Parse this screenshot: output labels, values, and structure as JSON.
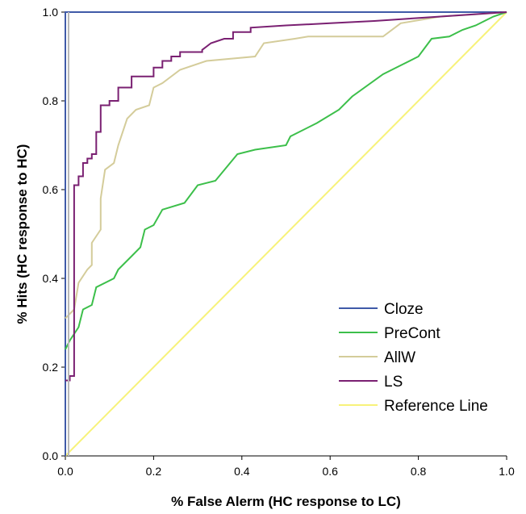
{
  "chart_data": {
    "type": "line",
    "xlabel": "% False Alerm (HC response to LC)",
    "ylabel": "% Hits (HC response to HC)",
    "xlim": [
      0,
      1
    ],
    "ylim": [
      0,
      1
    ],
    "x_ticks": [
      "0.0",
      "0.2",
      "0.4",
      "0.6",
      "0.8",
      "1.0"
    ],
    "y_ticks": [
      "0.0",
      "0.2",
      "0.4",
      "0.6",
      "0.8",
      "1.0"
    ],
    "legend_position": "bottom-right",
    "grid": false,
    "series": [
      {
        "name": "Cloze",
        "color": "#3f5aa8",
        "points": [
          [
            0,
            0
          ],
          [
            0,
            1
          ],
          [
            1,
            1
          ]
        ]
      },
      {
        "name": "PreCont",
        "color": "#3cbf4a",
        "points": [
          [
            0,
            0.24
          ],
          [
            0.01,
            0.26
          ],
          [
            0.03,
            0.29
          ],
          [
            0.04,
            0.33
          ],
          [
            0.06,
            0.34
          ],
          [
            0.07,
            0.38
          ],
          [
            0.11,
            0.4
          ],
          [
            0.12,
            0.42
          ],
          [
            0.15,
            0.45
          ],
          [
            0.17,
            0.47
          ],
          [
            0.18,
            0.51
          ],
          [
            0.2,
            0.52
          ],
          [
            0.22,
            0.555
          ],
          [
            0.27,
            0.57
          ],
          [
            0.3,
            0.61
          ],
          [
            0.34,
            0.62
          ],
          [
            0.39,
            0.68
          ],
          [
            0.43,
            0.69
          ],
          [
            0.5,
            0.7
          ],
          [
            0.51,
            0.72
          ],
          [
            0.57,
            0.75
          ],
          [
            0.62,
            0.78
          ],
          [
            0.65,
            0.81
          ],
          [
            0.72,
            0.86
          ],
          [
            0.76,
            0.88
          ],
          [
            0.8,
            0.9
          ],
          [
            0.83,
            0.94
          ],
          [
            0.87,
            0.945
          ],
          [
            0.9,
            0.96
          ],
          [
            0.93,
            0.97
          ],
          [
            0.95,
            0.98
          ],
          [
            0.97,
            0.99
          ],
          [
            1,
            1
          ]
        ]
      },
      {
        "name": "AllW",
        "color": "#d4cc9a",
        "points": [
          [
            0,
            0.31
          ],
          [
            0.02,
            0.33
          ],
          [
            0.03,
            0.39
          ],
          [
            0.05,
            0.42
          ],
          [
            0.06,
            0.43
          ],
          [
            0.06,
            0.48
          ],
          [
            0.08,
            0.51
          ],
          [
            0.08,
            0.58
          ],
          [
            0.09,
            0.645
          ],
          [
            0.11,
            0.66
          ],
          [
            0.12,
            0.7
          ],
          [
            0.14,
            0.76
          ],
          [
            0.16,
            0.78
          ],
          [
            0.19,
            0.79
          ],
          [
            0.2,
            0.83
          ],
          [
            0.22,
            0.84
          ],
          [
            0.26,
            0.87
          ],
          [
            0.32,
            0.89
          ],
          [
            0.43,
            0.9
          ],
          [
            0.45,
            0.93
          ],
          [
            0.52,
            0.94
          ],
          [
            0.55,
            0.945
          ],
          [
            0.72,
            0.945
          ],
          [
            0.76,
            0.975
          ],
          [
            0.85,
            0.99
          ],
          [
            0.93,
            0.995
          ],
          [
            1,
            1
          ]
        ]
      },
      {
        "name": "LS",
        "color": "#7a2072",
        "points": [
          [
            0,
            0.17
          ],
          [
            0.01,
            0.17
          ],
          [
            0.01,
            0.18
          ],
          [
            0.02,
            0.18
          ],
          [
            0.02,
            0.61
          ],
          [
            0.03,
            0.61
          ],
          [
            0.03,
            0.63
          ],
          [
            0.04,
            0.63
          ],
          [
            0.04,
            0.66
          ],
          [
            0.05,
            0.66
          ],
          [
            0.05,
            0.67
          ],
          [
            0.06,
            0.67
          ],
          [
            0.06,
            0.68
          ],
          [
            0.07,
            0.68
          ],
          [
            0.07,
            0.73
          ],
          [
            0.08,
            0.73
          ],
          [
            0.08,
            0.79
          ],
          [
            0.1,
            0.79
          ],
          [
            0.1,
            0.8
          ],
          [
            0.12,
            0.8
          ],
          [
            0.12,
            0.83
          ],
          [
            0.15,
            0.83
          ],
          [
            0.15,
            0.855
          ],
          [
            0.2,
            0.855
          ],
          [
            0.2,
            0.875
          ],
          [
            0.22,
            0.875
          ],
          [
            0.22,
            0.89
          ],
          [
            0.24,
            0.89
          ],
          [
            0.24,
            0.9
          ],
          [
            0.26,
            0.9
          ],
          [
            0.26,
            0.91
          ],
          [
            0.31,
            0.91
          ],
          [
            0.31,
            0.915
          ],
          [
            0.33,
            0.93
          ],
          [
            0.36,
            0.94
          ],
          [
            0.38,
            0.94
          ],
          [
            0.38,
            0.955
          ],
          [
            0.42,
            0.955
          ],
          [
            0.42,
            0.965
          ],
          [
            0.5,
            0.97
          ],
          [
            0.6,
            0.975
          ],
          [
            0.7,
            0.98
          ],
          [
            0.85,
            0.99
          ],
          [
            1,
            1
          ]
        ]
      },
      {
        "name": "Reference Line",
        "color": "#f7f27a",
        "points": [
          [
            0,
            0
          ],
          [
            1,
            1
          ]
        ]
      }
    ]
  }
}
